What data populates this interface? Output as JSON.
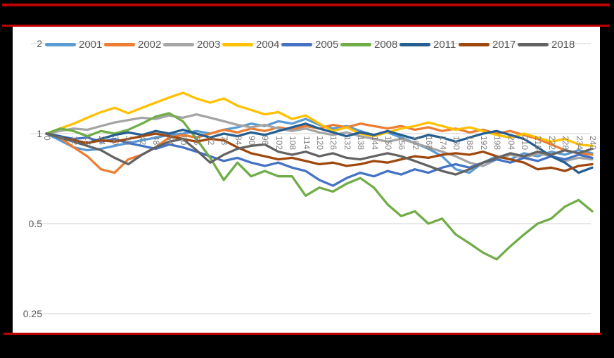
{
  "frame": {
    "background": "#000000",
    "accent_red": "#C00000",
    "panel_background": "#FFFFFF"
  },
  "chart_data": {
    "type": "line",
    "title": "",
    "xlabel": "",
    "ylabel": "",
    "y_scale": "log2",
    "y_ticks": [
      "2",
      "1",
      "0.5",
      "0.25"
    ],
    "y_tick_values": [
      2,
      1,
      0.5,
      0.25
    ],
    "ylim": [
      0.25,
      2
    ],
    "grid": true,
    "legend_position": "top",
    "axis_color": "#595959",
    "grid_color": "#D9D9D9",
    "x_label_color": "#7F7F7F",
    "x": [
      0,
      6,
      12,
      18,
      24,
      30,
      36,
      42,
      48,
      54,
      60,
      66,
      72,
      78,
      84,
      90,
      96,
      102,
      108,
      114,
      120,
      126,
      132,
      138,
      144,
      150,
      156,
      162,
      168,
      174,
      180,
      186,
      192,
      198,
      204,
      210,
      216,
      222,
      228,
      234,
      240
    ],
    "series": [
      {
        "name": "2001",
        "color": "#5B9BD5",
        "values": [
          1.0,
          0.95,
          0.9,
          0.88,
          0.89,
          0.91,
          0.93,
          0.95,
          0.97,
          0.99,
          1.0,
          1.02,
          1.0,
          1.03,
          1.05,
          1.08,
          1.06,
          1.1,
          1.08,
          1.12,
          1.07,
          1.04,
          1.06,
          1.02,
          0.99,
          1.01,
          0.97,
          0.93,
          0.89,
          0.84,
          0.76,
          0.74,
          0.8,
          0.84,
          0.82,
          0.86,
          0.84,
          0.87,
          0.85,
          0.88,
          0.86
        ]
      },
      {
        "name": "2002",
        "color": "#ED7D31",
        "values": [
          1.0,
          0.97,
          0.9,
          0.84,
          0.76,
          0.74,
          0.82,
          0.85,
          0.9,
          0.97,
          0.99,
          0.97,
          1.0,
          1.03,
          1.01,
          1.04,
          1.02,
          1.05,
          1.03,
          1.06,
          1.04,
          1.07,
          1.05,
          1.08,
          1.06,
          1.04,
          1.06,
          1.03,
          1.05,
          1.02,
          1.04,
          1.01,
          1.03,
          1.0,
          1.02,
          0.99,
          0.96,
          0.92,
          0.88,
          0.86,
          0.85
        ]
      },
      {
        "name": "2003",
        "color": "#A5A5A5",
        "values": [
          1.0,
          1.02,
          1.04,
          1.03,
          1.06,
          1.09,
          1.11,
          1.13,
          1.12,
          1.15,
          1.13,
          1.16,
          1.13,
          1.1,
          1.07,
          1.05,
          1.07,
          1.04,
          1.02,
          1.04,
          1.01,
          0.99,
          1.01,
          0.98,
          0.96,
          0.94,
          0.96,
          0.93,
          0.9,
          0.87,
          0.84,
          0.8,
          0.78,
          0.82,
          0.85,
          0.83,
          0.86,
          0.84,
          0.81,
          0.83,
          0.82
        ]
      },
      {
        "name": "2004",
        "color": "#FFC000",
        "values": [
          1.0,
          1.04,
          1.08,
          1.13,
          1.18,
          1.22,
          1.17,
          1.22,
          1.27,
          1.32,
          1.37,
          1.31,
          1.27,
          1.31,
          1.24,
          1.2,
          1.16,
          1.18,
          1.12,
          1.15,
          1.08,
          1.02,
          1.05,
          1.0,
          0.98,
          1.01,
          1.04,
          1.06,
          1.09,
          1.06,
          1.03,
          1.05,
          1.02,
          0.99,
          0.97,
          1.0,
          0.97,
          0.94,
          0.96,
          0.92,
          0.91
        ]
      },
      {
        "name": "2005",
        "color": "#4472C4",
        "values": [
          1.0,
          0.98,
          0.96,
          0.97,
          0.94,
          0.96,
          0.93,
          0.91,
          0.89,
          0.92,
          0.9,
          0.87,
          0.84,
          0.81,
          0.83,
          0.8,
          0.78,
          0.8,
          0.77,
          0.75,
          0.7,
          0.67,
          0.71,
          0.74,
          0.72,
          0.75,
          0.73,
          0.76,
          0.74,
          0.77,
          0.79,
          0.77,
          0.8,
          0.82,
          0.8,
          0.83,
          0.81,
          0.84,
          0.82,
          0.85,
          0.83
        ]
      },
      {
        "name": "2008",
        "color": "#70AD47",
        "values": [
          1.0,
          1.04,
          1.02,
          0.98,
          1.02,
          1.0,
          1.03,
          1.08,
          1.14,
          1.17,
          1.1,
          0.96,
          0.83,
          0.7,
          0.8,
          0.72,
          0.75,
          0.72,
          0.72,
          0.62,
          0.66,
          0.64,
          0.68,
          0.71,
          0.66,
          0.58,
          0.53,
          0.55,
          0.5,
          0.52,
          0.46,
          0.43,
          0.4,
          0.38,
          0.42,
          0.46,
          0.5,
          0.52,
          0.57,
          0.6,
          0.55
        ]
      },
      {
        "name": "2011",
        "color": "#255E91",
        "values": [
          1.0,
          0.98,
          0.95,
          0.93,
          0.96,
          0.99,
          1.01,
          0.99,
          1.02,
          1.0,
          1.03,
          1.0,
          0.97,
          1.0,
          0.98,
          1.01,
          0.99,
          1.02,
          1.05,
          1.08,
          1.04,
          1.01,
          0.98,
          1.01,
          0.99,
          1.02,
          0.99,
          0.96,
          0.99,
          0.97,
          0.94,
          0.97,
          1.0,
          1.02,
          0.99,
          0.96,
          0.9,
          0.84,
          0.8,
          0.74,
          0.77
        ]
      },
      {
        "name": "2017",
        "color": "#9E480E",
        "values": [
          1.0,
          0.97,
          0.95,
          0.93,
          0.95,
          0.94,
          0.96,
          0.98,
          1.0,
          0.98,
          0.96,
          0.94,
          0.96,
          0.95,
          0.9,
          0.86,
          0.84,
          0.82,
          0.83,
          0.81,
          0.79,
          0.8,
          0.78,
          0.79,
          0.81,
          0.8,
          0.82,
          0.84,
          0.83,
          0.85,
          0.86,
          0.85,
          0.87,
          0.84,
          0.82,
          0.8,
          0.76,
          0.77,
          0.75,
          0.78,
          0.79
        ]
      },
      {
        "name": "2018",
        "color": "#636363",
        "values": [
          1.0,
          0.97,
          0.94,
          0.91,
          0.88,
          0.83,
          0.79,
          0.85,
          0.9,
          0.94,
          0.96,
          0.88,
          0.8,
          0.85,
          0.89,
          0.91,
          0.92,
          0.87,
          0.85,
          0.87,
          0.84,
          0.86,
          0.83,
          0.82,
          0.84,
          0.86,
          0.84,
          0.81,
          0.78,
          0.75,
          0.73,
          0.76,
          0.8,
          0.83,
          0.86,
          0.84,
          0.87,
          0.85,
          0.88,
          0.86,
          0.89
        ]
      }
    ]
  }
}
